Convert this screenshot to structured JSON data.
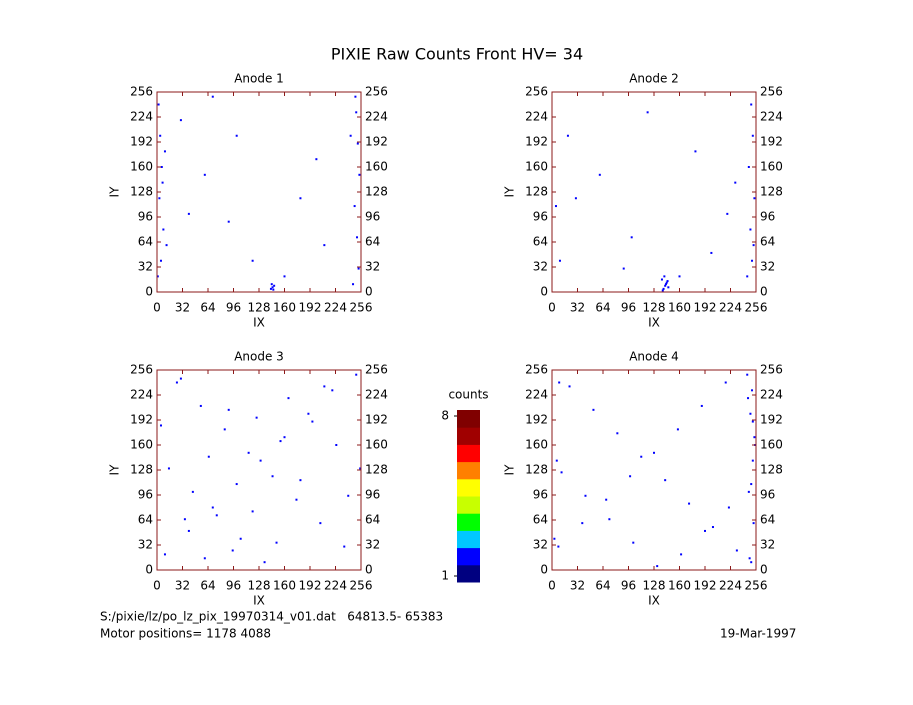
{
  "title": "PIXIE Raw Counts Front HV= 34",
  "chart_data": [
    {
      "type": "scatter",
      "title": "Anode 1",
      "x_label": "IX",
      "y_label": "IY",
      "xlim": [
        0,
        256
      ],
      "ylim": [
        0,
        256
      ],
      "xticks": [
        0,
        32,
        64,
        96,
        128,
        160,
        192,
        224,
        256
      ],
      "yticks": [
        0,
        32,
        64,
        96,
        128,
        160,
        192,
        224,
        256
      ],
      "series": [
        {
          "color": "#0000ff",
          "x": [
            2,
            4,
            6,
            3,
            8,
            5,
            1,
            10,
            250,
            252,
            254,
            248,
            251,
            253,
            246,
            249,
            143,
            145,
            147,
            144,
            146,
            30,
            60,
            90,
            120,
            180,
            210,
            100,
            70,
            200,
            40,
            160,
            12,
            7,
            243
          ],
          "y": [
            240,
            200,
            160,
            120,
            80,
            40,
            20,
            180,
            230,
            190,
            150,
            110,
            70,
            30,
            10,
            250,
            4,
            6,
            8,
            10,
            3,
            220,
            150,
            90,
            40,
            120,
            60,
            200,
            250,
            170,
            100,
            20,
            60,
            140,
            200
          ]
        }
      ]
    },
    {
      "type": "scatter",
      "title": "Anode 2",
      "x_label": "IX",
      "y_label": "IY",
      "xlim": [
        0,
        256
      ],
      "ylim": [
        0,
        256
      ],
      "xticks": [
        0,
        32,
        64,
        96,
        128,
        160,
        192,
        224,
        256
      ],
      "yticks": [
        0,
        32,
        64,
        96,
        128,
        160,
        192,
        224,
        256
      ],
      "series": [
        {
          "color": "#0000ff",
          "x": [
            140,
            142,
            144,
            138,
            146,
            141,
            143,
            139,
            145,
            250,
            252,
            247,
            254,
            249,
            251,
            245,
            253,
            20,
            60,
            100,
            180,
            220,
            120,
            90,
            200,
            30,
            160,
            230,
            10,
            5
          ],
          "y": [
            4,
            8,
            12,
            16,
            6,
            20,
            10,
            2,
            14,
            240,
            200,
            160,
            120,
            80,
            40,
            20,
            60,
            200,
            150,
            70,
            180,
            100,
            230,
            30,
            50,
            120,
            20,
            140,
            40,
            110
          ]
        }
      ]
    },
    {
      "type": "scatter",
      "title": "Anode 3",
      "x_label": "IX",
      "y_label": "IY",
      "xlim": [
        0,
        256
      ],
      "ylim": [
        0,
        256
      ],
      "xticks": [
        0,
        32,
        64,
        96,
        128,
        160,
        192,
        224,
        256
      ],
      "yticks": [
        0,
        32,
        64,
        96,
        128,
        160,
        192,
        224,
        256
      ],
      "series": [
        {
          "color": "#0000ff",
          "x": [
            10,
            40,
            70,
            100,
            130,
            160,
            190,
            220,
            250,
            25,
            55,
            85,
            115,
            145,
            175,
            205,
            235,
            15,
            45,
            75,
            105,
            135,
            165,
            195,
            225,
            255,
            30,
            60,
            90,
            120,
            150,
            180,
            210,
            240,
            5,
            35,
            65,
            95,
            125,
            155
          ],
          "y": [
            20,
            50,
            80,
            110,
            140,
            170,
            200,
            230,
            250,
            240,
            210,
            180,
            150,
            120,
            90,
            60,
            30,
            130,
            100,
            70,
            40,
            10,
            220,
            190,
            160,
            130,
            245,
            15,
            205,
            75,
            35,
            115,
            235,
            95,
            185,
            65,
            145,
            25,
            195,
            165
          ]
        }
      ]
    },
    {
      "type": "scatter",
      "title": "Anode 4",
      "x_label": "IX",
      "y_label": "IY",
      "xlim": [
        0,
        256
      ],
      "ylim": [
        0,
        256
      ],
      "xticks": [
        0,
        32,
        64,
        96,
        128,
        160,
        192,
        224,
        256
      ],
      "yticks": [
        0,
        32,
        64,
        96,
        128,
        160,
        192,
        224,
        256
      ],
      "series": [
        {
          "color": "#0000ff",
          "x": [
            8,
            38,
            68,
            98,
            128,
            158,
            188,
            218,
            248,
            22,
            52,
            82,
            112,
            142,
            172,
            202,
            232,
            12,
            42,
            72,
            102,
            132,
            162,
            192,
            222,
            250,
            252,
            254,
            249,
            251,
            253,
            247,
            255,
            246,
            3,
            6,
            9,
            250,
            252,
            245
          ],
          "y": [
            30,
            60,
            90,
            120,
            150,
            180,
            210,
            240,
            15,
            235,
            205,
            175,
            145,
            115,
            85,
            55,
            25,
            125,
            95,
            65,
            35,
            5,
            20,
            50,
            80,
            110,
            140,
            170,
            200,
            230,
            60,
            100,
            160,
            220,
            40,
            140,
            240,
            10,
            190,
            250
          ]
        }
      ]
    },
    {
      "type": "colorbar",
      "title": "counts",
      "clim": [
        1,
        8
      ],
      "ticks": [
        1,
        8
      ],
      "colors": [
        "#000080",
        "#0000ff",
        "#00c8ff",
        "#00ff00",
        "#c8ff00",
        "#ffff00",
        "#ff8000",
        "#ff0000",
        "#a00000",
        "#800000"
      ]
    }
  ],
  "footer": {
    "file": "S:/pixie/lz/po_lz_pix_19970314_v01.dat   64813.5- 65383",
    "motor": "Motor positions= 1178 4088",
    "date": "19-Mar-1997"
  }
}
